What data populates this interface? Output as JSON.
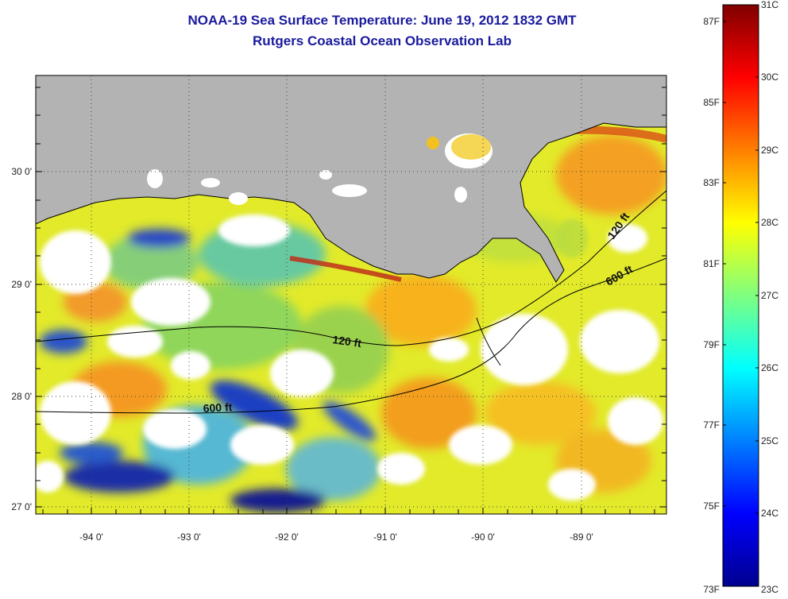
{
  "header": {
    "title": "NOAA-19 Sea Surface Temperature:  June 19, 2012 1832 GMT",
    "subtitle": "Rutgers Coastal Ocean Observation Lab"
  },
  "map": {
    "lon_ticks": [
      "-94 0'",
      "-93 0'",
      "-92 0'",
      "-91 0'",
      "-90 0'",
      "-89 0'"
    ],
    "lat_ticks": [
      "30 0'",
      "29 0'",
      "28 0'",
      "27 0'"
    ],
    "contour_labels": [
      "120 ft",
      "600 ft",
      "120 ft",
      "600 ft"
    ],
    "land_color": "#b3b3b3",
    "nodata_color": "#ffffff"
  },
  "colorbar": {
    "celsius_labels": [
      "31C",
      "30C",
      "29C",
      "28C",
      "27C",
      "26C",
      "25C",
      "24C",
      "23C"
    ],
    "fahrenheit_labels": [
      "87F",
      "85F",
      "83F",
      "81F",
      "79F",
      "77F",
      "75F",
      "73F"
    ],
    "colormap": "jet",
    "range_c": [
      23,
      31
    ],
    "range_f": [
      73,
      87
    ]
  }
}
